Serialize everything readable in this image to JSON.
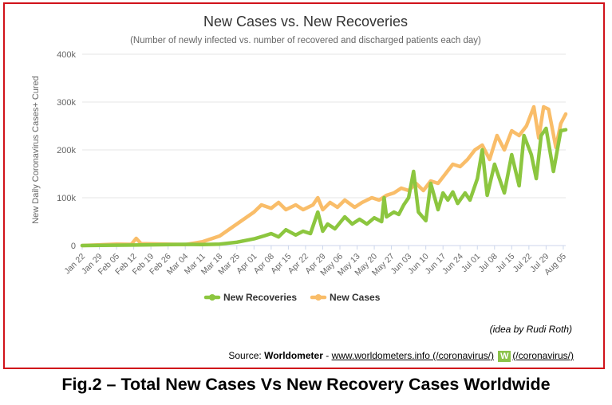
{
  "figure": {
    "source_prefix": "Source:",
    "source_name": "Worldometer",
    "source_separator": "-",
    "source_link": "www.worldometers.info (/coronavirus/)",
    "logo_link": "(/coronavirus/)",
    "logo_glyph": "W",
    "credit": "(idea by Rudi Roth)",
    "caption": "Fig.2 – Total New Cases Vs New Recovery Cases Worldwide",
    "frame_color": "#d0121a"
  },
  "chart_data": {
    "type": "line",
    "title": "New Cases vs. New Recoveries",
    "subtitle": "(Number of newly infected vs. number of recovered and discharged patients each day)",
    "ylabel": "New Daily Coronavirus Cases+ Cured",
    "xlabel": "",
    "ylim": [
      0,
      400000
    ],
    "y_ticks": [
      0,
      100000,
      200000,
      300000,
      400000
    ],
    "y_tick_labels": [
      "0",
      "100k",
      "200k",
      "300k",
      "400k"
    ],
    "x_range": [
      "2020-01-22",
      "2020-08-06"
    ],
    "x_tick_dates": [
      "2020-01-22",
      "2020-01-29",
      "2020-02-05",
      "2020-02-12",
      "2020-02-19",
      "2020-02-26",
      "2020-03-04",
      "2020-03-11",
      "2020-03-18",
      "2020-03-25",
      "2020-04-01",
      "2020-04-08",
      "2020-04-15",
      "2020-04-22",
      "2020-04-29",
      "2020-05-06",
      "2020-05-13",
      "2020-05-20",
      "2020-05-27",
      "2020-06-03",
      "2020-06-10",
      "2020-06-17",
      "2020-06-24",
      "2020-07-01",
      "2020-07-08",
      "2020-07-15",
      "2020-07-22",
      "2020-07-29",
      "2020-08-05"
    ],
    "x_tick_labels": [
      "Jan 22",
      "Jan 29",
      "Feb 05",
      "Feb 12",
      "Feb 19",
      "Feb 26",
      "Mar 04",
      "Mar 11",
      "Mar 18",
      "Mar 25",
      "Apr 01",
      "Apr 08",
      "Apr 15",
      "Apr 22",
      "Apr 29",
      "May 06",
      "May 13",
      "May 20",
      "May 27",
      "Jun 03",
      "Jun 10",
      "Jun 17",
      "Jun 24",
      "Jul 01",
      "Jul 08",
      "Jul 15",
      "Jul 22",
      "Jul 29",
      "Aug 05"
    ],
    "grid": true,
    "legend_position": "bottom-center",
    "series": [
      {
        "name": "New Recoveries",
        "color": "#8cc63f",
        "points": [
          [
            "2020-01-22",
            0
          ],
          [
            "2020-02-12",
            1000
          ],
          [
            "2020-03-04",
            2500
          ],
          [
            "2020-03-11",
            2000
          ],
          [
            "2020-03-18",
            3000
          ],
          [
            "2020-03-25",
            7000
          ],
          [
            "2020-04-01",
            14000
          ],
          [
            "2020-04-05",
            20000
          ],
          [
            "2020-04-08",
            25000
          ],
          [
            "2020-04-11",
            18000
          ],
          [
            "2020-04-14",
            33000
          ],
          [
            "2020-04-18",
            22000
          ],
          [
            "2020-04-21",
            30000
          ],
          [
            "2020-04-24",
            25000
          ],
          [
            "2020-04-27",
            70000
          ],
          [
            "2020-04-29",
            30000
          ],
          [
            "2020-05-01",
            45000
          ],
          [
            "2020-05-04",
            35000
          ],
          [
            "2020-05-08",
            60000
          ],
          [
            "2020-05-11",
            45000
          ],
          [
            "2020-05-14",
            55000
          ],
          [
            "2020-05-17",
            45000
          ],
          [
            "2020-05-20",
            58000
          ],
          [
            "2020-05-23",
            50000
          ],
          [
            "2020-05-24",
            100000
          ],
          [
            "2020-05-25",
            60000
          ],
          [
            "2020-05-28",
            70000
          ],
          [
            "2020-05-30",
            65000
          ],
          [
            "2020-06-01",
            85000
          ],
          [
            "2020-06-03",
            100000
          ],
          [
            "2020-06-05",
            155000
          ],
          [
            "2020-06-07",
            70000
          ],
          [
            "2020-06-10",
            52000
          ],
          [
            "2020-06-12",
            130000
          ],
          [
            "2020-06-15",
            75000
          ],
          [
            "2020-06-17",
            110000
          ],
          [
            "2020-06-19",
            95000
          ],
          [
            "2020-06-21",
            112000
          ],
          [
            "2020-06-23",
            88000
          ],
          [
            "2020-06-26",
            110000
          ],
          [
            "2020-06-28",
            95000
          ],
          [
            "2020-07-01",
            140000
          ],
          [
            "2020-07-03",
            200000
          ],
          [
            "2020-07-05",
            105000
          ],
          [
            "2020-07-08",
            170000
          ],
          [
            "2020-07-10",
            140000
          ],
          [
            "2020-07-12",
            110000
          ],
          [
            "2020-07-15",
            190000
          ],
          [
            "2020-07-18",
            125000
          ],
          [
            "2020-07-20",
            230000
          ],
          [
            "2020-07-23",
            190000
          ],
          [
            "2020-07-25",
            140000
          ],
          [
            "2020-07-27",
            230000
          ],
          [
            "2020-07-29",
            245000
          ],
          [
            "2020-08-01",
            155000
          ],
          [
            "2020-08-04",
            240000
          ],
          [
            "2020-08-06",
            242000
          ]
        ]
      },
      {
        "name": "New Cases",
        "color": "#f9bd69",
        "points": [
          [
            "2020-01-22",
            0
          ],
          [
            "2020-02-05",
            3000
          ],
          [
            "2020-02-11",
            2500
          ],
          [
            "2020-02-13",
            15000
          ],
          [
            "2020-02-15",
            4000
          ],
          [
            "2020-03-04",
            2000
          ],
          [
            "2020-03-11",
            8000
          ],
          [
            "2020-03-18",
            20000
          ],
          [
            "2020-03-25",
            45000
          ],
          [
            "2020-04-01",
            70000
          ],
          [
            "2020-04-04",
            85000
          ],
          [
            "2020-04-08",
            78000
          ],
          [
            "2020-04-11",
            90000
          ],
          [
            "2020-04-14",
            75000
          ],
          [
            "2020-04-18",
            85000
          ],
          [
            "2020-04-21",
            75000
          ],
          [
            "2020-04-25",
            85000
          ],
          [
            "2020-04-27",
            100000
          ],
          [
            "2020-04-29",
            75000
          ],
          [
            "2020-05-02",
            90000
          ],
          [
            "2020-05-05",
            80000
          ],
          [
            "2020-05-08",
            95000
          ],
          [
            "2020-05-12",
            80000
          ],
          [
            "2020-05-15",
            90000
          ],
          [
            "2020-05-19",
            100000
          ],
          [
            "2020-05-22",
            95000
          ],
          [
            "2020-05-25",
            105000
          ],
          [
            "2020-05-28",
            110000
          ],
          [
            "2020-05-31",
            120000
          ],
          [
            "2020-06-03",
            115000
          ],
          [
            "2020-06-06",
            130000
          ],
          [
            "2020-06-09",
            115000
          ],
          [
            "2020-06-12",
            135000
          ],
          [
            "2020-06-15",
            130000
          ],
          [
            "2020-06-18",
            150000
          ],
          [
            "2020-06-21",
            170000
          ],
          [
            "2020-06-24",
            165000
          ],
          [
            "2020-06-27",
            180000
          ],
          [
            "2020-06-30",
            200000
          ],
          [
            "2020-07-03",
            210000
          ],
          [
            "2020-07-06",
            180000
          ],
          [
            "2020-07-09",
            230000
          ],
          [
            "2020-07-12",
            200000
          ],
          [
            "2020-07-15",
            240000
          ],
          [
            "2020-07-18",
            230000
          ],
          [
            "2020-07-21",
            250000
          ],
          [
            "2020-07-24",
            290000
          ],
          [
            "2020-07-26",
            225000
          ],
          [
            "2020-07-28",
            290000
          ],
          [
            "2020-07-30",
            285000
          ],
          [
            "2020-08-02",
            205000
          ],
          [
            "2020-08-04",
            255000
          ],
          [
            "2020-08-06",
            275000
          ]
        ]
      }
    ]
  }
}
